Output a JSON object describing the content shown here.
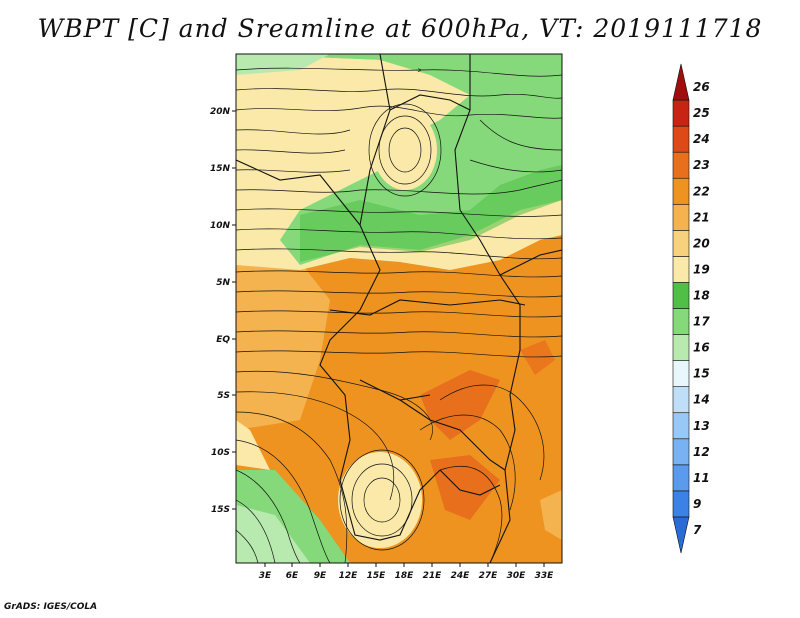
{
  "title": "WBPT [C] and Sreamline at 600hPa, VT: 2019111718",
  "footer": "GrADS: IGES/COLA",
  "y_ticks": [
    "20N",
    "15N",
    "10N",
    "5N",
    "EQ",
    "5S",
    "10S",
    "15S"
  ],
  "x_ticks": [
    "3E",
    "6E",
    "9E",
    "12E",
    "15E",
    "18E",
    "21E",
    "24E",
    "27E",
    "30E",
    "33E"
  ],
  "colorbar": {
    "labels": [
      "7",
      "9",
      "11",
      "12",
      "13",
      "14",
      "15",
      "16",
      "17",
      "18",
      "19",
      "20",
      "21",
      "22",
      "23",
      "24",
      "25",
      "26"
    ],
    "colors": [
      "#2a6bd6",
      "#3c82e6",
      "#5a9bee",
      "#79b2f2",
      "#98c8f6",
      "#bfdff9",
      "#e8f7fb",
      "#b8eab0",
      "#86d97a",
      "#4fbf45",
      "#fae9a8",
      "#f7d27c",
      "#f4b34e",
      "#ee9320",
      "#e8701c",
      "#dd4a17",
      "#c82414",
      "#a00d0d"
    ]
  },
  "colors": {
    "green_dark": "#4fbf45",
    "green_mid": "#86d97a",
    "green_light": "#b8eab0",
    "tan": "#fae9a8",
    "orange": "#f4b34e",
    "orange_dark": "#ee9320",
    "red_orange": "#e8701c"
  }
}
